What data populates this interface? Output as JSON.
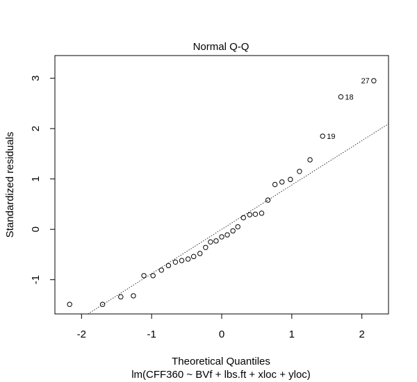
{
  "chart_data": {
    "type": "scatter",
    "title": "Normal Q-Q",
    "xlabel": "Theoretical Quantiles",
    "subtitle": "lm(CFF360 ~ BVf + lbs.ft + xloc + yloc)",
    "ylabel": "Standardized residuals",
    "xlim": [
      -2.38,
      2.38
    ],
    "ylim": [
      -1.68,
      3.45
    ],
    "xticks": [
      -2,
      -1,
      0,
      1,
      2
    ],
    "yticks": [
      -1,
      0,
      1,
      2,
      3
    ],
    "grid": false,
    "reference_line": {
      "slope": 0.88,
      "intercept": 0.0
    },
    "points": [
      {
        "x": -2.17,
        "y": -1.49,
        "label": ""
      },
      {
        "x": -1.7,
        "y": -1.49,
        "label": ""
      },
      {
        "x": -1.44,
        "y": -1.34,
        "label": ""
      },
      {
        "x": -1.26,
        "y": -1.32,
        "label": ""
      },
      {
        "x": -1.11,
        "y": -0.92,
        "label": ""
      },
      {
        "x": -0.98,
        "y": -0.92,
        "label": ""
      },
      {
        "x": -0.86,
        "y": -0.81,
        "label": ""
      },
      {
        "x": -0.76,
        "y": -0.72,
        "label": ""
      },
      {
        "x": -0.66,
        "y": -0.65,
        "label": ""
      },
      {
        "x": -0.57,
        "y": -0.62,
        "label": ""
      },
      {
        "x": -0.48,
        "y": -0.59,
        "label": ""
      },
      {
        "x": -0.4,
        "y": -0.54,
        "label": ""
      },
      {
        "x": -0.31,
        "y": -0.48,
        "label": ""
      },
      {
        "x": -0.23,
        "y": -0.36,
        "label": ""
      },
      {
        "x": -0.16,
        "y": -0.25,
        "label": ""
      },
      {
        "x": -0.08,
        "y": -0.23,
        "label": ""
      },
      {
        "x": 0.0,
        "y": -0.15,
        "label": ""
      },
      {
        "x": 0.08,
        "y": -0.11,
        "label": ""
      },
      {
        "x": 0.16,
        "y": -0.03,
        "label": ""
      },
      {
        "x": 0.23,
        "y": 0.05,
        "label": ""
      },
      {
        "x": 0.31,
        "y": 0.23,
        "label": ""
      },
      {
        "x": 0.4,
        "y": 0.29,
        "label": ""
      },
      {
        "x": 0.48,
        "y": 0.3,
        "label": ""
      },
      {
        "x": 0.57,
        "y": 0.32,
        "label": ""
      },
      {
        "x": 0.66,
        "y": 0.58,
        "label": ""
      },
      {
        "x": 0.76,
        "y": 0.89,
        "label": ""
      },
      {
        "x": 0.86,
        "y": 0.94,
        "label": ""
      },
      {
        "x": 0.98,
        "y": 0.99,
        "label": ""
      },
      {
        "x": 1.11,
        "y": 1.15,
        "label": ""
      },
      {
        "x": 1.26,
        "y": 1.38,
        "label": ""
      },
      {
        "x": 1.44,
        "y": 1.85,
        "label": "19"
      },
      {
        "x": 1.7,
        "y": 2.63,
        "label": "18"
      },
      {
        "x": 2.17,
        "y": 2.95,
        "label": "27"
      }
    ]
  }
}
